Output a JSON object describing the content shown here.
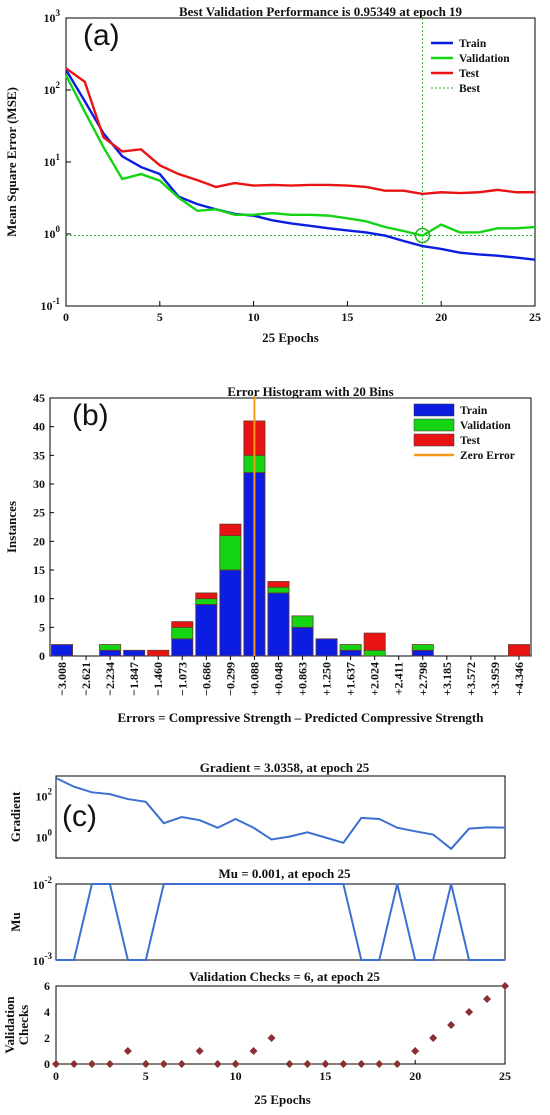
{
  "colors": {
    "train": "#0a1de0",
    "validation": "#14d414",
    "test": "#e81414",
    "best": "#28b428",
    "zero": "#f39a18",
    "line": "#3c6fd1",
    "marker": "#8a2f35"
  },
  "chart_data": [
    {
      "id": "a",
      "panel_label": "(a)",
      "type": "line",
      "title": "Best Validation Performance is 0.95349 at epoch 19",
      "xlabel": "25 Epochs",
      "ylabel": "Mean Square Error (MSE)",
      "xlim": [
        0,
        25
      ],
      "ylim": [
        0.1,
        1000
      ],
      "yscale": "log",
      "x_ticks": [
        "0",
        "5",
        "10",
        "15",
        "20",
        "25"
      ],
      "y_ticks": [
        {
          "base": "10",
          "exp": "-1"
        },
        {
          "base": "10",
          "exp": "0"
        },
        {
          "base": "10",
          "exp": "1"
        },
        {
          "base": "10",
          "exp": "2"
        },
        {
          "base": "10",
          "exp": "3"
        }
      ],
      "legend": [
        "Train",
        "Validation",
        "Test",
        "Best"
      ],
      "legend_position": "top-right",
      "best": {
        "x": 19,
        "y": 0.95349
      },
      "x": [
        0,
        1,
        2,
        3,
        4,
        5,
        6,
        7,
        8,
        9,
        10,
        11,
        12,
        13,
        14,
        15,
        16,
        17,
        18,
        19,
        20,
        21,
        22,
        23,
        24,
        25
      ],
      "series": [
        {
          "name": "Train",
          "values": [
            190,
            70,
            25,
            12,
            8.5,
            6.8,
            3.3,
            2.6,
            2.2,
            1.9,
            1.8,
            1.55,
            1.4,
            1.3,
            1.2,
            1.12,
            1.05,
            0.95,
            0.8,
            0.68,
            0.62,
            0.55,
            0.52,
            0.5,
            0.47,
            0.44
          ]
        },
        {
          "name": "Validation",
          "values": [
            160,
            50,
            16,
            5.8,
            6.8,
            5.5,
            3.2,
            2.1,
            2.2,
            1.85,
            1.85,
            1.95,
            1.85,
            1.85,
            1.8,
            1.65,
            1.5,
            1.25,
            1.1,
            0.95,
            1.35,
            1.05,
            1.05,
            1.2,
            1.2,
            1.25
          ]
        },
        {
          "name": "Test",
          "values": [
            200,
            130,
            22,
            14,
            15,
            9,
            6.8,
            5.6,
            4.5,
            5.1,
            4.7,
            4.8,
            4.7,
            4.8,
            4.8,
            4.7,
            4.5,
            4.0,
            4.0,
            3.6,
            3.8,
            3.7,
            3.8,
            4.1,
            3.8,
            3.8
          ]
        }
      ]
    },
    {
      "id": "b",
      "panel_label": "(b)",
      "type": "bar",
      "title": "Error Histogram with 20 Bins",
      "xlabel": "Errors = Compressive Strength – Predicted Compressive Strength",
      "ylabel": "Instances",
      "ylim": [
        0,
        45
      ],
      "y_ticks": [
        "0",
        "5",
        "10",
        "15",
        "20",
        "25",
        "30",
        "35",
        "40",
        "45"
      ],
      "legend": [
        "Train",
        "Validation",
        "Test",
        "Zero Error"
      ],
      "legend_position": "top-right",
      "categories": [
        "−3.008",
        "−2.621",
        "−2.234",
        "−1.847",
        "−1.460",
        "−1.073",
        "−0.686",
        "−0.299",
        "+0.088",
        "+0.048",
        "+0.863",
        "+1.250",
        "+1.637",
        "+2.024",
        "+2.411",
        "+2.798",
        "+3.185",
        "+3.572",
        "+3.959",
        "+4.346"
      ],
      "zero_error_bin": 8,
      "series": [
        {
          "name": "Train",
          "values": [
            2,
            0,
            1,
            1,
            0,
            3,
            9,
            15,
            32,
            11,
            5,
            3,
            1,
            0,
            0,
            1,
            0,
            0,
            0,
            0
          ]
        },
        {
          "name": "Validation",
          "values": [
            0,
            0,
            1,
            0,
            0,
            2,
            1,
            6,
            3,
            1,
            2,
            0,
            1,
            1,
            0,
            1,
            0,
            0,
            0,
            0
          ]
        },
        {
          "name": "Test",
          "values": [
            0,
            0,
            0,
            0,
            1,
            1,
            1,
            2,
            6,
            1,
            0,
            0,
            0,
            3,
            0,
            0,
            0,
            0,
            0,
            2
          ]
        }
      ]
    },
    {
      "id": "c1",
      "panel_label": "(c)",
      "type": "line",
      "title": "Gradient = 3.0358, at epoch 25",
      "ylabel": "Gradient",
      "xlim": [
        0,
        25
      ],
      "ylim": [
        0.1,
        1000
      ],
      "yscale": "log",
      "y_ticks": [
        {
          "base": "10",
          "exp": "0"
        },
        {
          "base": "10",
          "exp": "2"
        }
      ],
      "x": [
        0,
        1,
        2,
        3,
        4,
        5,
        6,
        7,
        8,
        9,
        10,
        11,
        12,
        13,
        14,
        15,
        16,
        17,
        18,
        19,
        20,
        21,
        22,
        23,
        24,
        25
      ],
      "values": [
        800,
        300,
        160,
        130,
        75,
        55,
        5,
        10,
        7,
        3,
        8,
        3,
        0.8,
        1.1,
        1.8,
        1,
        0.55,
        9,
        8,
        3,
        2,
        1.4,
        0.28,
        2.7,
        3.1,
        3.0358
      ]
    },
    {
      "id": "c2",
      "type": "line",
      "title": "Mu = 0.001, at epoch 25",
      "ylabel": "Mu",
      "xlim": [
        0,
        25
      ],
      "ylim": [
        0.001,
        0.01
      ],
      "yscale": "log",
      "y_ticks": [
        {
          "base": "10",
          "exp": "-3"
        },
        {
          "base": "10",
          "exp": "-2"
        }
      ],
      "x": [
        0,
        1,
        2,
        3,
        4,
        5,
        6,
        7,
        8,
        9,
        10,
        11,
        12,
        13,
        14,
        15,
        16,
        17,
        18,
        19,
        20,
        21,
        22,
        23,
        24,
        25
      ],
      "values": [
        0.001,
        0.001,
        0.01,
        0.01,
        0.001,
        0.001,
        0.01,
        0.01,
        0.01,
        0.01,
        0.01,
        0.01,
        0.01,
        0.01,
        0.01,
        0.01,
        0.01,
        0.001,
        0.001,
        0.01,
        0.001,
        0.001,
        0.01,
        0.001,
        0.001,
        0.001
      ]
    },
    {
      "id": "c3",
      "type": "scatter",
      "title": "Validation Checks = 6, at epoch 25",
      "xlabel": "25 Epochs",
      "ylabel": "Validation Checks",
      "xlim": [
        0,
        25
      ],
      "ylim": [
        0,
        6
      ],
      "x_ticks": [
        "0",
        "5",
        "10",
        "15",
        "20",
        "25"
      ],
      "y_ticks": [
        "0",
        "2",
        "4",
        "6"
      ],
      "x": [
        0,
        1,
        2,
        3,
        4,
        5,
        6,
        7,
        8,
        9,
        10,
        11,
        12,
        13,
        14,
        15,
        16,
        17,
        18,
        19,
        20,
        21,
        22,
        23,
        24,
        25
      ],
      "values": [
        0,
        0,
        0,
        0,
        1,
        0,
        0,
        0,
        1,
        0,
        0,
        1,
        2,
        0,
        0,
        0,
        0,
        0,
        0,
        0,
        1,
        2,
        3,
        4,
        5,
        6
      ]
    }
  ]
}
